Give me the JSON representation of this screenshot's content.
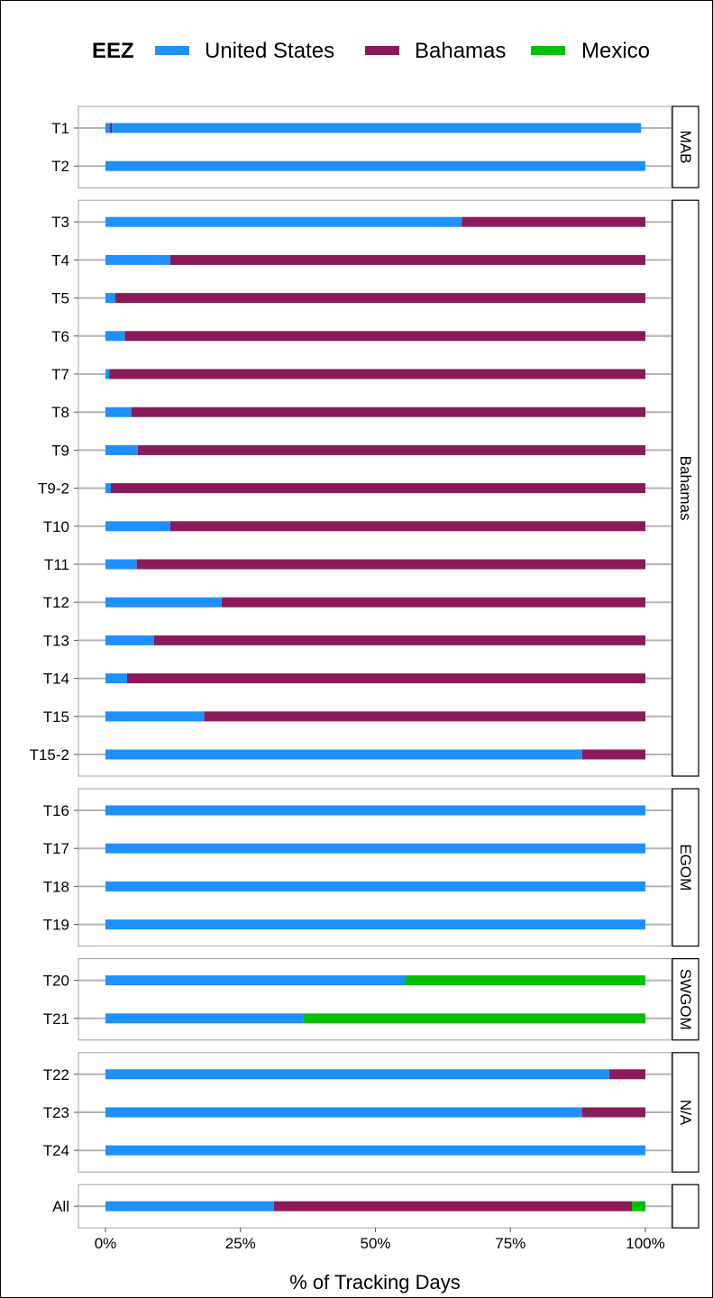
{
  "chart_data": {
    "type": "bar",
    "orientation": "horizontal-stacked",
    "title": "",
    "xlabel": "% of Tracking Days",
    "ylabel": "",
    "xlim": [
      0,
      100
    ],
    "x_ticks": [
      "0%",
      "25%",
      "50%",
      "75%",
      "100%"
    ],
    "x_tick_values": [
      0,
      25,
      50,
      75,
      100
    ],
    "grid": true,
    "legend": {
      "title": "EEZ",
      "position": "top",
      "entries": [
        "United States",
        "Bahamas",
        "Mexico"
      ]
    },
    "colors": {
      "United States": "#1e90ff",
      "Bahamas": "#8b1a5a",
      "Mexico": "#00c000"
    },
    "panels": [
      {
        "strip": "MAB",
        "rows": [
          {
            "label": "T1",
            "United States": 98.8,
            "Bahamas": 0.4,
            "Mexico": 0,
            "us_lead": 0.8
          },
          {
            "label": "T2",
            "United States": 100,
            "Bahamas": 0,
            "Mexico": 0
          }
        ]
      },
      {
        "strip": "Bahamas",
        "rows": [
          {
            "label": "T3",
            "United States": 66,
            "Bahamas": 34,
            "Mexico": 0
          },
          {
            "label": "T4",
            "United States": 12,
            "Bahamas": 88,
            "Mexico": 0
          },
          {
            "label": "T5",
            "United States": 1.8,
            "Bahamas": 98.2,
            "Mexico": 0
          },
          {
            "label": "T6",
            "United States": 3.6,
            "Bahamas": 96.4,
            "Mexico": 0
          },
          {
            "label": "T7",
            "United States": 0.7,
            "Bahamas": 99.3,
            "Mexico": 0
          },
          {
            "label": "T8",
            "United States": 4.8,
            "Bahamas": 95.2,
            "Mexico": 0
          },
          {
            "label": "T9",
            "United States": 6,
            "Bahamas": 94,
            "Mexico": 0
          },
          {
            "label": "T9-2",
            "United States": 1,
            "Bahamas": 99,
            "Mexico": 0
          },
          {
            "label": "T10",
            "United States": 12,
            "Bahamas": 88,
            "Mexico": 0
          },
          {
            "label": "T11",
            "United States": 5.8,
            "Bahamas": 94.2,
            "Mexico": 0
          },
          {
            "label": "T12",
            "United States": 21.5,
            "Bahamas": 78.5,
            "Mexico": 0
          },
          {
            "label": "T13",
            "United States": 9,
            "Bahamas": 91,
            "Mexico": 0
          },
          {
            "label": "T14",
            "United States": 4,
            "Bahamas": 96,
            "Mexico": 0
          },
          {
            "label": "T15",
            "United States": 18.3,
            "Bahamas": 81.7,
            "Mexico": 0
          },
          {
            "label": "T15-2",
            "United States": 88.3,
            "Bahamas": 11.7,
            "Mexico": 0
          }
        ]
      },
      {
        "strip": "EGOM",
        "rows": [
          {
            "label": "T16",
            "United States": 100,
            "Bahamas": 0,
            "Mexico": 0
          },
          {
            "label": "T17",
            "United States": 100,
            "Bahamas": 0,
            "Mexico": 0
          },
          {
            "label": "T18",
            "United States": 100,
            "Bahamas": 0,
            "Mexico": 0
          },
          {
            "label": "T19",
            "United States": 100,
            "Bahamas": 0,
            "Mexico": 0
          }
        ]
      },
      {
        "strip": "SWGOM",
        "rows": [
          {
            "label": "T20",
            "United States": 55.5,
            "Bahamas": 0,
            "Mexico": 44.5
          },
          {
            "label": "T21",
            "United States": 36.7,
            "Bahamas": 0,
            "Mexico": 63.3
          }
        ]
      },
      {
        "strip": "N/A",
        "rows": [
          {
            "label": "T22",
            "United States": 93.3,
            "Bahamas": 6.7,
            "Mexico": 0
          },
          {
            "label": "T23",
            "United States": 88.3,
            "Bahamas": 11.7,
            "Mexico": 0
          },
          {
            "label": "T24",
            "United States": 100,
            "Bahamas": 0,
            "Mexico": 0
          }
        ]
      },
      {
        "strip": "",
        "rows": [
          {
            "label": "All",
            "United States": 31.2,
            "Bahamas": 66.3,
            "Mexico": 2.5
          }
        ]
      }
    ]
  }
}
